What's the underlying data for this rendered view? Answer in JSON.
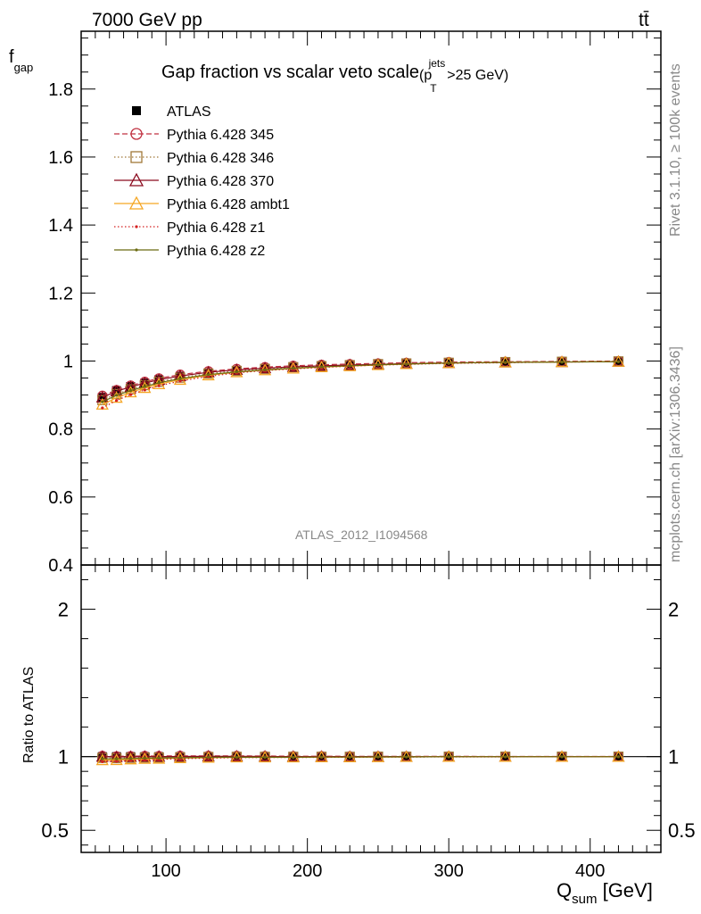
{
  "header": {
    "energy_label": "7000 GeV pp",
    "process_label": "tt̄"
  },
  "side_labels": {
    "rivet": "Rivet 3.1.10, ≥ 100k events",
    "mcplots": "mcplots.cern.ch [arXiv:1306.3436]"
  },
  "watermark": "ATLAS_2012_I1094568",
  "chart_data": [
    {
      "type": "line",
      "title": "Gap fraction vs scalar veto scale",
      "title_suffix": {
        "pre": "(p",
        "sub": "T",
        "sup": "jets",
        "post": ">25 GeV)"
      },
      "ylabel": {
        "main": "f",
        "sub": "gap"
      },
      "xlim": [
        40,
        450
      ],
      "ylim": [
        0.4,
        1.97
      ],
      "yticks": [
        0.4,
        0.6,
        0.8,
        1,
        1.2,
        1.4,
        1.6,
        1.8
      ],
      "ytick_labels": [
        "0.4",
        "0.6",
        "0.8",
        "1",
        "1.2",
        "1.4",
        "1.6",
        "1.8"
      ],
      "legend_position": "top-left",
      "x": [
        55,
        65,
        75,
        85,
        95,
        110,
        130,
        150,
        170,
        190,
        210,
        230,
        250,
        270,
        300,
        340,
        380,
        420
      ],
      "series": [
        {
          "name": "ATLAS",
          "color": "#000000",
          "marker": "square-filled",
          "line": "none",
          "values": [
            0.893,
            0.913,
            0.925,
            0.935,
            0.945,
            0.955,
            0.965,
            0.972,
            0.978,
            0.983,
            0.986,
            0.989,
            0.991,
            0.993,
            0.995,
            0.997,
            0.998,
            0.999
          ]
        },
        {
          "name": "Pythia 6.428 345",
          "color": "#c03040",
          "marker": "circle-open",
          "line": "dashed",
          "values": [
            0.898,
            0.915,
            0.928,
            0.939,
            0.949,
            0.96,
            0.97,
            0.977,
            0.982,
            0.986,
            0.989,
            0.991,
            0.993,
            0.995,
            0.997,
            0.998,
            0.999,
            1.0
          ]
        },
        {
          "name": "Pythia 6.428 346",
          "color": "#a07838",
          "marker": "square-open",
          "line": "dotted",
          "values": [
            0.885,
            0.903,
            0.917,
            0.929,
            0.939,
            0.951,
            0.963,
            0.971,
            0.977,
            0.982,
            0.985,
            0.988,
            0.991,
            0.993,
            0.995,
            0.997,
            0.998,
            0.999
          ]
        },
        {
          "name": "Pythia 6.428 370",
          "color": "#8b0a1e",
          "marker": "triangle-open",
          "line": "solid",
          "values": [
            0.893,
            0.911,
            0.924,
            0.935,
            0.945,
            0.956,
            0.967,
            0.974,
            0.979,
            0.983,
            0.986,
            0.988,
            0.99,
            0.992,
            0.994,
            0.996,
            0.997,
            0.998
          ]
        },
        {
          "name": "Pythia 6.428 ambt1",
          "color": "#f5a623",
          "marker": "triangle-open",
          "line": "solid",
          "values": [
            0.872,
            0.892,
            0.908,
            0.921,
            0.932,
            0.945,
            0.958,
            0.967,
            0.973,
            0.978,
            0.982,
            0.985,
            0.988,
            0.991,
            0.994,
            0.996,
            0.997,
            0.998
          ]
        },
        {
          "name": "Pythia 6.428 z1",
          "color": "#d42020",
          "marker": "dot",
          "line": "dotted",
          "values": [
            0.862,
            0.884,
            0.901,
            0.915,
            0.927,
            0.941,
            0.955,
            0.965,
            0.972,
            0.977,
            0.981,
            0.985,
            0.988,
            0.99,
            0.993,
            0.995,
            0.997,
            0.998
          ]
        },
        {
          "name": "Pythia 6.428 z2",
          "color": "#6b6b10",
          "marker": "dot",
          "line": "solid",
          "values": [
            0.88,
            0.899,
            0.913,
            0.925,
            0.936,
            0.948,
            0.96,
            0.968,
            0.974,
            0.979,
            0.983,
            0.986,
            0.989,
            0.991,
            0.994,
            0.996,
            0.997,
            0.998
          ]
        }
      ]
    },
    {
      "type": "line",
      "title": "",
      "ylabel": "Ratio to ATLAS",
      "xlabel": {
        "main": "Q",
        "sub": "sum",
        "post": " [GeV]"
      },
      "xlim": [
        40,
        450
      ],
      "ylim": [
        0.35,
        2.3
      ],
      "xticks": [
        100,
        200,
        300,
        400
      ],
      "xtick_labels": [
        "100",
        "200",
        "300",
        "400"
      ],
      "yticks": [
        0.5,
        1,
        2
      ],
      "ytick_labels": [
        "0.5",
        "1",
        "2"
      ],
      "reference_line": 1
    }
  ]
}
